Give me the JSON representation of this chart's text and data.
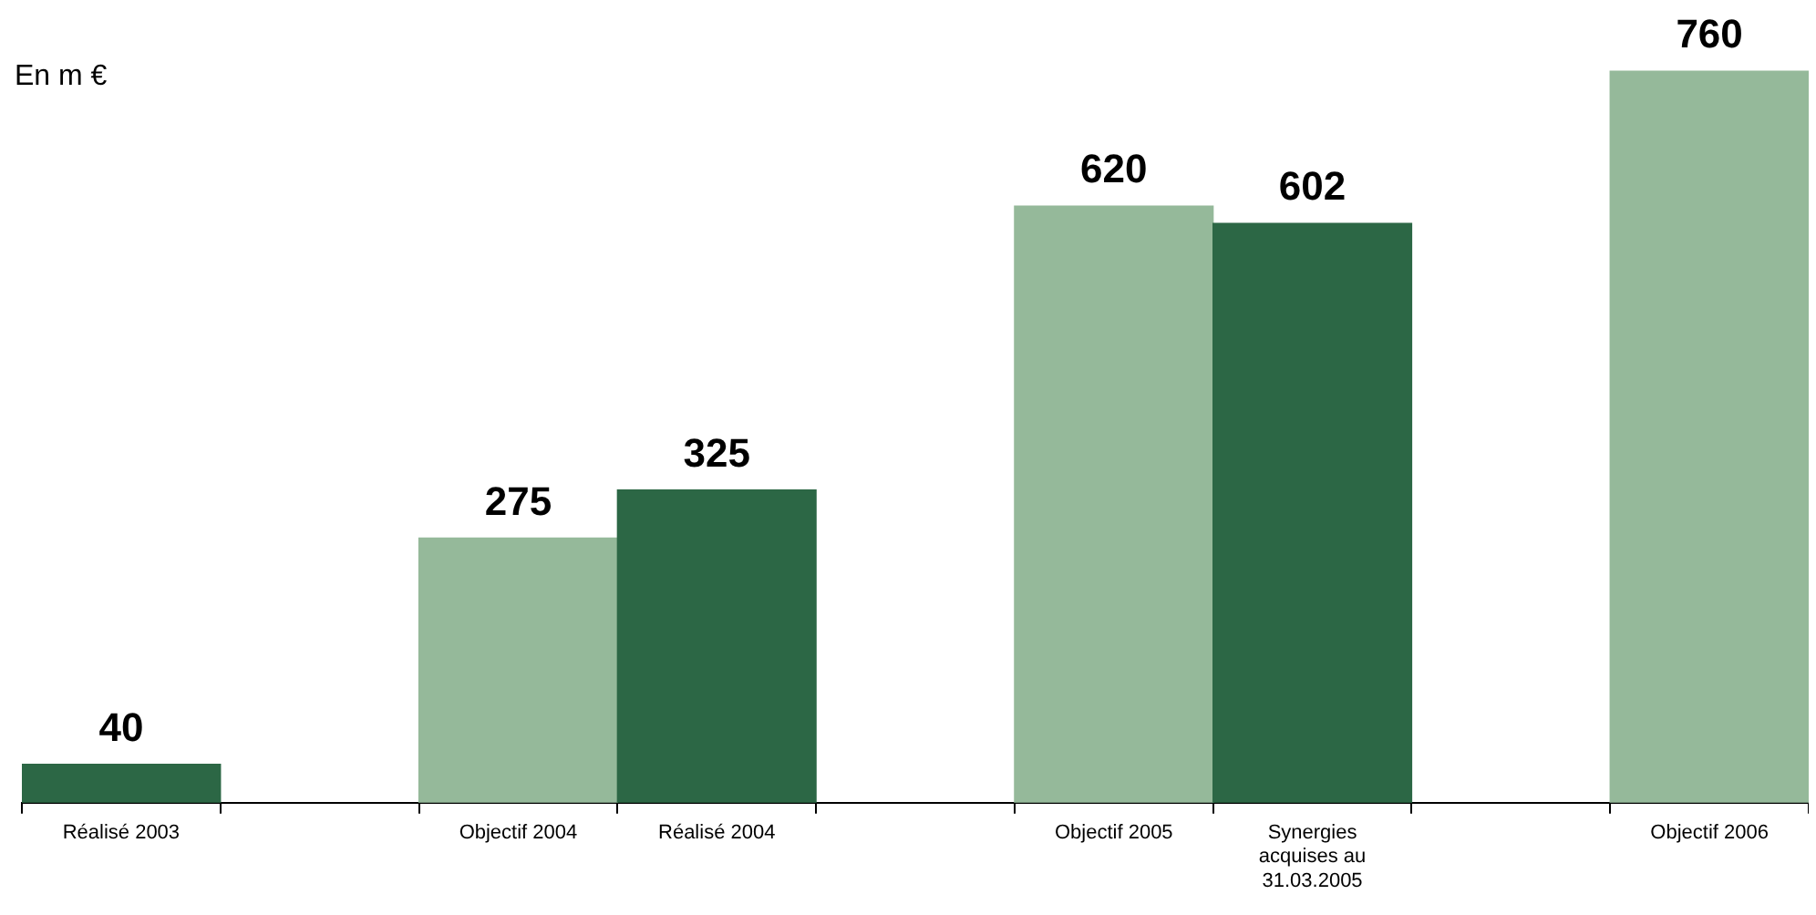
{
  "chart_data": {
    "type": "bar",
    "ylabel": "En m €",
    "categories": [
      "Réalisé 2003",
      null,
      "Objectif 2004",
      "Réalisé 2004",
      null,
      "Objectif 2005",
      "Synergies acquises au 31.03.2005",
      null,
      "Objectif 2006"
    ],
    "values": [
      40,
      null,
      275,
      325,
      null,
      620,
      602,
      null,
      760
    ],
    "colors": [
      "#2c6745",
      "#ffffff",
      "#95b99a",
      "#2c6745",
      "#ffffff",
      "#95b99a",
      "#2c6745",
      "#ffffff",
      "#95b99a"
    ],
    "data_labels": true,
    "legend": false,
    "grid": false
  }
}
